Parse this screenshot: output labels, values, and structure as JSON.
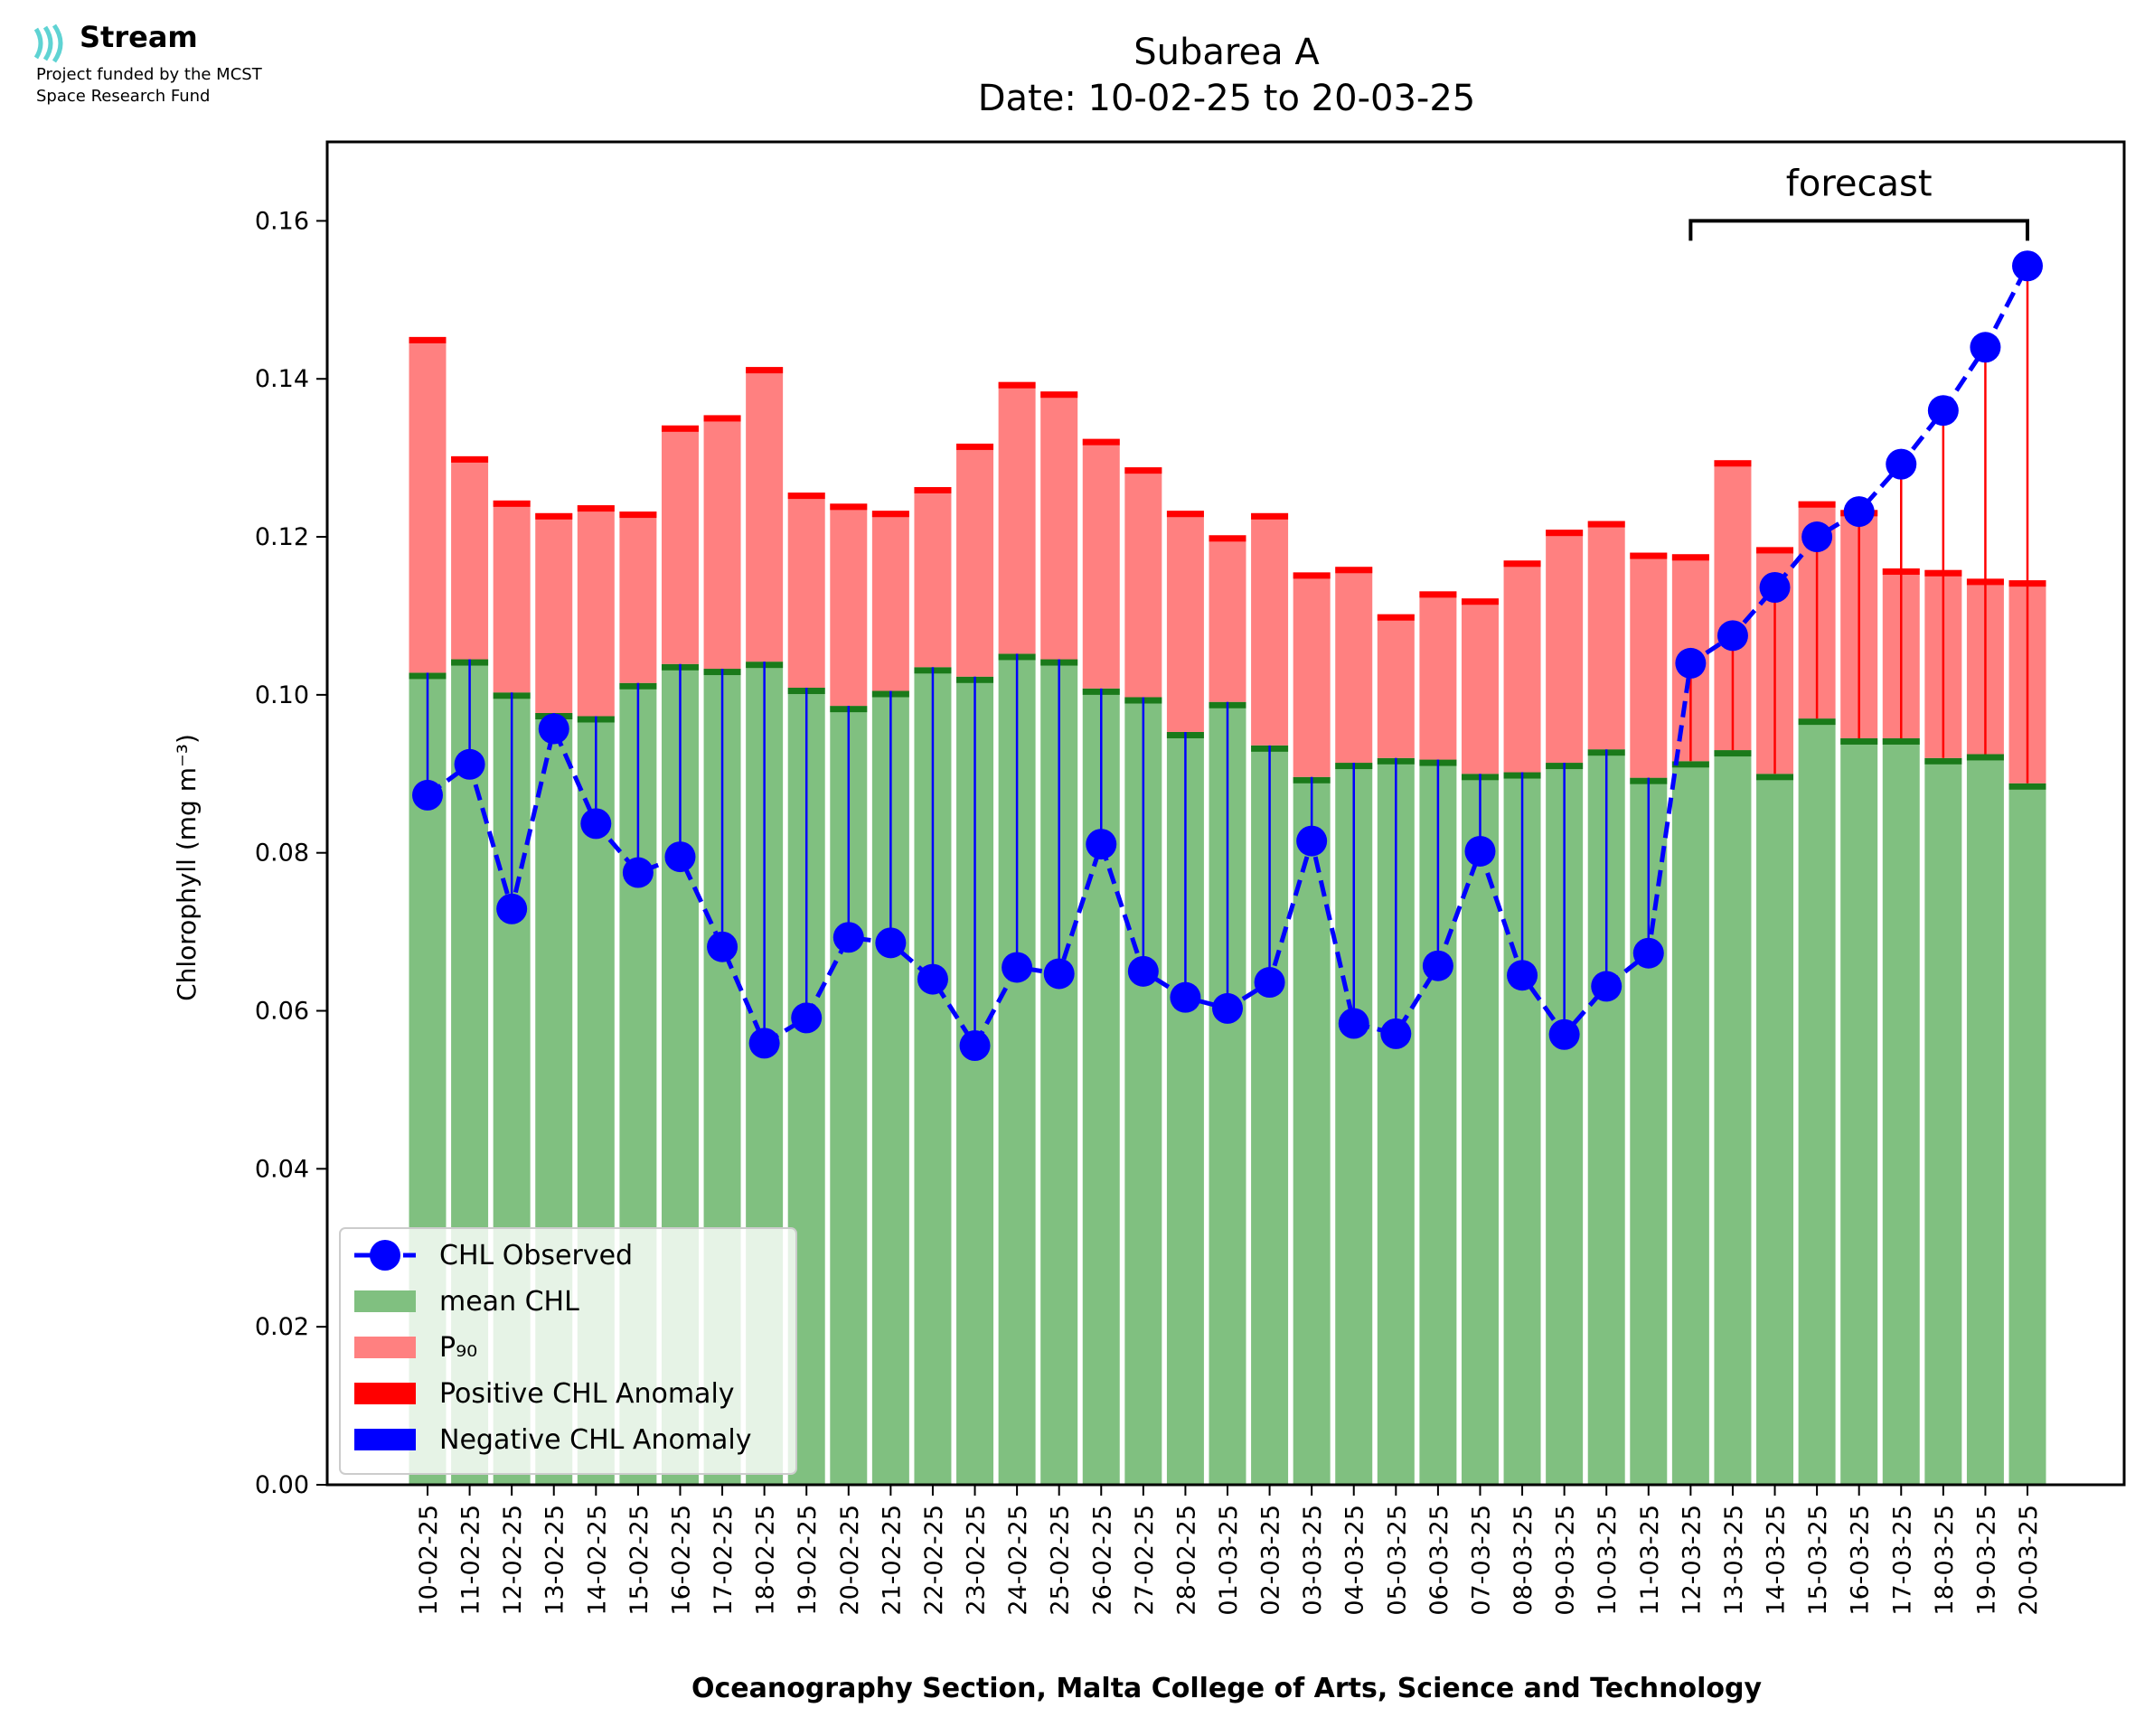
{
  "logo": {
    "name": "Stream",
    "line1": "Project funded by the MCST",
    "line2": "Space Research Fund"
  },
  "chart_data": {
    "type": "bar",
    "title": "Subarea A",
    "subtitle": "Date: 10-02-25 to 20-03-25",
    "xlabel": "Oceanography Section, Malta College of Arts, Science and Technology",
    "ylabel": "Chlorophyll (mg m⁻³)",
    "ylim": [
      0,
      0.17
    ],
    "yticks": [
      "0.00",
      "0.02",
      "0.04",
      "0.06",
      "0.08",
      "0.10",
      "0.12",
      "0.14",
      "0.16"
    ],
    "categories": [
      "10-02-25",
      "11-02-25",
      "12-02-25",
      "13-02-25",
      "14-02-25",
      "15-02-25",
      "16-02-25",
      "17-02-25",
      "18-02-25",
      "19-02-25",
      "20-02-25",
      "21-02-25",
      "22-02-25",
      "23-02-25",
      "24-02-25",
      "25-02-25",
      "26-02-25",
      "27-02-25",
      "28-02-25",
      "01-03-25",
      "02-03-25",
      "03-03-25",
      "04-03-25",
      "05-03-25",
      "06-03-25",
      "07-03-25",
      "08-03-25",
      "09-03-25",
      "10-03-25",
      "11-03-25",
      "12-03-25",
      "13-03-25",
      "14-03-25",
      "15-03-25",
      "16-03-25",
      "17-03-25",
      "18-03-25",
      "19-03-25",
      "20-03-25"
    ],
    "series": [
      {
        "name": "mean CHL",
        "color": "#80c080",
        "values": [
          0.1028,
          0.1045,
          0.1003,
          0.0977,
          0.0973,
          0.1015,
          0.1039,
          0.1033,
          0.1042,
          0.1009,
          0.0986,
          0.1005,
          0.1035,
          0.1023,
          0.1052,
          0.1045,
          0.1008,
          0.0997,
          0.0953,
          0.0991,
          0.0936,
          0.0896,
          0.0914,
          0.092,
          0.0918,
          0.09,
          0.0902,
          0.0914,
          0.0931,
          0.0895,
          0.0916,
          0.093,
          0.09,
          0.097,
          0.0945,
          0.0945,
          0.092,
          0.0925,
          0.0888
        ]
      },
      {
        "name": "P₉₀",
        "color": "#ff8080",
        "values": [
          0.1453,
          0.1302,
          0.1246,
          0.123,
          0.124,
          0.1232,
          0.1341,
          0.1354,
          0.1415,
          0.1256,
          0.1242,
          0.1233,
          0.1263,
          0.1318,
          0.1396,
          0.1384,
          0.1324,
          0.1288,
          0.1233,
          0.1202,
          0.123,
          0.1155,
          0.1162,
          0.1102,
          0.1131,
          0.1122,
          0.117,
          0.1209,
          0.122,
          0.118,
          0.1178,
          0.1297,
          0.1187,
          0.1245,
          0.1234,
          0.116,
          0.1158,
          0.1147,
          0.1145
        ]
      },
      {
        "name": "CHL Observed",
        "color": "#0000ff",
        "values": [
          0.0873,
          0.0912,
          0.0729,
          0.0957,
          0.0837,
          0.0775,
          0.0795,
          0.0681,
          0.0559,
          0.0591,
          0.0693,
          0.0686,
          0.064,
          0.0556,
          0.0655,
          0.0647,
          0.0811,
          0.065,
          0.0617,
          0.0603,
          0.0636,
          0.0815,
          0.0584,
          0.0571,
          0.0657,
          0.0802,
          0.0645,
          0.057,
          0.0631,
          0.0673,
          0.104,
          0.1075,
          0.1136,
          0.12,
          0.1232,
          0.1292,
          0.136,
          0.144,
          0.1543
        ]
      }
    ],
    "legend": {
      "position": "lower-left",
      "entries": [
        {
          "label": "CHL Observed",
          "kind": "line-marker",
          "color": "#0000ff"
        },
        {
          "label": "mean CHL",
          "kind": "patch",
          "color": "#80c080"
        },
        {
          "label": "P₉₀",
          "kind": "patch",
          "color": "#ff8080"
        },
        {
          "label": "Positive CHL Anomaly",
          "kind": "patch",
          "color": "#ff0000"
        },
        {
          "label": "Negative CHL Anomaly",
          "kind": "patch",
          "color": "#0000ff"
        }
      ]
    },
    "annotation": {
      "text": "forecast",
      "from": "12-03-25",
      "to": "20-03-25",
      "at": 0.16
    },
    "colors": {
      "mean_edge": "#1a7a1a",
      "p90_edge": "#ff0000",
      "positive_anomaly": "#ff0000",
      "negative_anomaly": "#0000ff"
    }
  }
}
